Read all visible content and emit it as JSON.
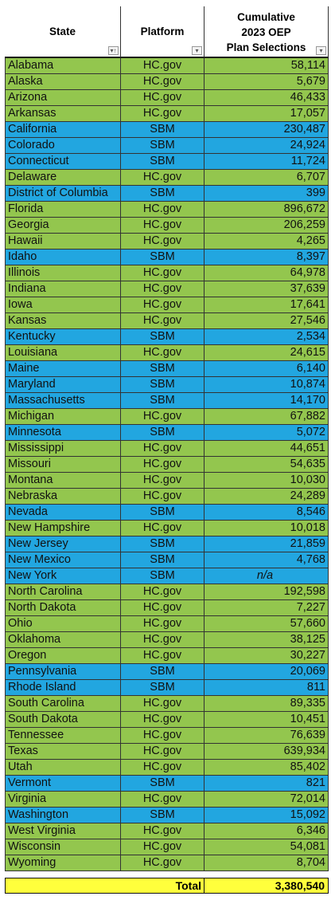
{
  "table": {
    "header": [
      "State",
      "Platform",
      [
        "Cumulative",
        "2023 OEP",
        "Plan Selections"
      ]
    ],
    "rows": [
      [
        "Alabama",
        "HC.gov",
        "58,114"
      ],
      [
        "Alaska",
        "HC.gov",
        "5,679"
      ],
      [
        "Arizona",
        "HC.gov",
        "46,433"
      ],
      [
        "Arkansas",
        "HC.gov",
        "17,057"
      ],
      [
        "California",
        "SBM",
        "230,487"
      ],
      [
        "Colorado",
        "SBM",
        "24,924"
      ],
      [
        "Connecticut",
        "SBM",
        "11,724"
      ],
      [
        "Delaware",
        "HC.gov",
        "6,707"
      ],
      [
        "District of Columbia",
        "SBM",
        "399"
      ],
      [
        "Florida",
        "HC.gov",
        "896,672"
      ],
      [
        "Georgia",
        "HC.gov",
        "206,259"
      ],
      [
        "Hawaii",
        "HC.gov",
        "4,265"
      ],
      [
        "Idaho",
        "SBM",
        "8,397"
      ],
      [
        "Illinois",
        "HC.gov",
        "64,978"
      ],
      [
        "Indiana",
        "HC.gov",
        "37,639"
      ],
      [
        "Iowa",
        "HC.gov",
        "17,641"
      ],
      [
        "Kansas",
        "HC.gov",
        "27,546"
      ],
      [
        "Kentucky",
        "SBM",
        "2,534"
      ],
      [
        "Louisiana",
        "HC.gov",
        "24,615"
      ],
      [
        "Maine",
        "SBM",
        "6,140"
      ],
      [
        "Maryland",
        "SBM",
        "10,874"
      ],
      [
        "Massachusetts",
        "SBM",
        "14,170"
      ],
      [
        "Michigan",
        "HC.gov",
        "67,882"
      ],
      [
        "Minnesota",
        "SBM",
        "5,072"
      ],
      [
        "Mississippi",
        "HC.gov",
        "44,651"
      ],
      [
        "Missouri",
        "HC.gov",
        "54,635"
      ],
      [
        "Montana",
        "HC.gov",
        "10,030"
      ],
      [
        "Nebraska",
        "HC.gov",
        "24,289"
      ],
      [
        "Nevada",
        "SBM",
        "8,546"
      ],
      [
        "New Hampshire",
        "HC.gov",
        "10,018"
      ],
      [
        "New Jersey",
        "SBM",
        "21,859"
      ],
      [
        "New Mexico",
        "SBM",
        "4,768"
      ],
      [
        "New York",
        "SBM",
        "n/a"
      ],
      [
        "North Carolina",
        "HC.gov",
        "192,598"
      ],
      [
        "North Dakota",
        "HC.gov",
        "7,227"
      ],
      [
        "Ohio",
        "HC.gov",
        "57,660"
      ],
      [
        "Oklahoma",
        "HC.gov",
        "38,125"
      ],
      [
        "Oregon",
        "HC.gov",
        "30,227"
      ],
      [
        "Pennsylvania",
        "SBM",
        "20,069"
      ],
      [
        "Rhode Island",
        "SBM",
        "811"
      ],
      [
        "South Carolina",
        "HC.gov",
        "89,335"
      ],
      [
        "South Dakota",
        "HC.gov",
        "10,451"
      ],
      [
        "Tennessee",
        "HC.gov",
        "76,639"
      ],
      [
        "Texas",
        "HC.gov",
        "639,934"
      ],
      [
        "Utah",
        "HC.gov",
        "85,402"
      ],
      [
        "Vermont",
        "SBM",
        "821"
      ],
      [
        "Virginia",
        "HC.gov",
        "72,014"
      ],
      [
        "Washington",
        "SBM",
        "15,092"
      ],
      [
        "West Virginia",
        "HC.gov",
        "6,346"
      ],
      [
        "Wisconsin",
        "HC.gov",
        "54,081"
      ],
      [
        "Wyoming",
        "HC.gov",
        "8,704"
      ]
    ],
    "platform_colors": {
      "HC.gov": "#93c64e",
      "SBM": "#22a6e0"
    },
    "total": [
      "Total",
      "3,380,540"
    ],
    "total_color": "#ffff3c"
  }
}
